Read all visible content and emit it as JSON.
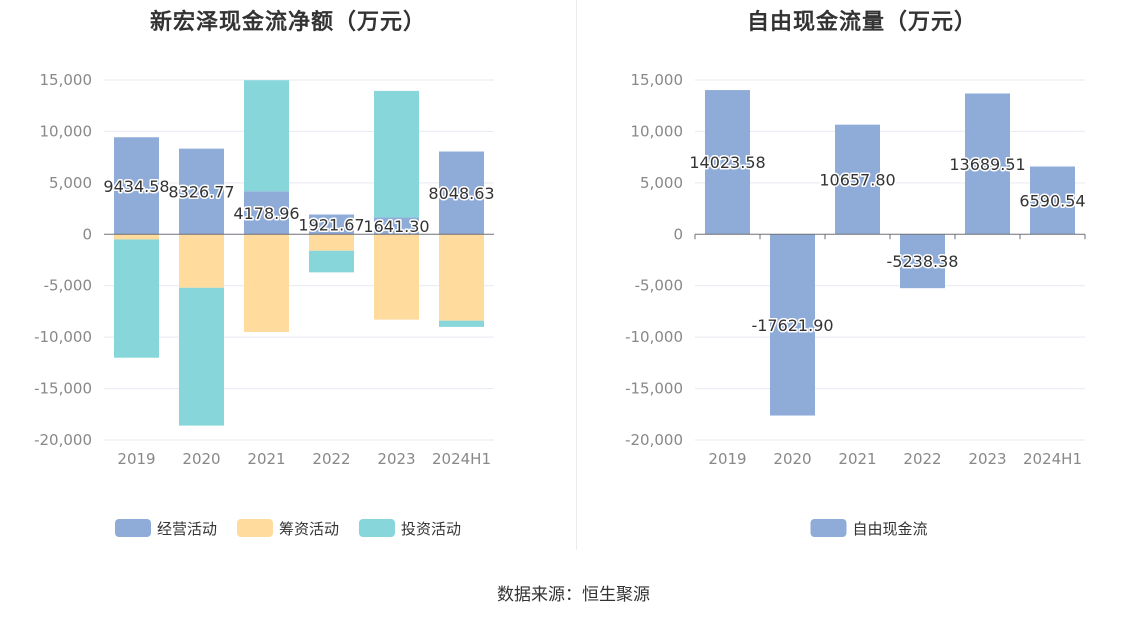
{
  "source": "数据来源：恒生聚源",
  "colors": {
    "operating": "#8facd9",
    "financing": "#ffdb9e",
    "investing": "#87d6da"
  },
  "chart_data": [
    {
      "type": "bar",
      "stacked": true,
      "title": "新宏泽现金流净额（万元）",
      "categories": [
        "2019",
        "2020",
        "2021",
        "2022",
        "2023",
        "2024H1"
      ],
      "ylim": [
        -20000,
        15000
      ],
      "yticks": [
        15000,
        10000,
        5000,
        0,
        -5000,
        -10000,
        -15000,
        -20000
      ],
      "ytick_labels": [
        "15,000",
        "10,000",
        "5,000",
        "0",
        "-5,000",
        "-10,000",
        "-15,000",
        "-20,000"
      ],
      "legend_position": "bottom",
      "series": [
        {
          "name": "经营活动",
          "values": [
            9434.58,
            8326.77,
            4178.96,
            1921.67,
            1641.3,
            8048.63
          ],
          "labels": [
            "9434.58",
            "8326.77",
            "4178.96",
            "1921.67",
            "1641.30",
            "8048.63"
          ]
        },
        {
          "name": "筹资活动",
          "values": [
            -500,
            -5200,
            -9500,
            -1600,
            -8300,
            -8400
          ]
        },
        {
          "name": "投资活动",
          "values": [
            -11500,
            -13400,
            10800,
            -2100,
            12300,
            -600
          ]
        }
      ]
    },
    {
      "type": "bar",
      "title": "自由现金流量（万元）",
      "categories": [
        "2019",
        "2020",
        "2021",
        "2022",
        "2023",
        "2024H1"
      ],
      "ylim": [
        -20000,
        15000
      ],
      "yticks": [
        15000,
        10000,
        5000,
        0,
        -5000,
        -10000,
        -15000,
        -20000
      ],
      "ytick_labels": [
        "15,000",
        "10,000",
        "5,000",
        "0",
        "-5,000",
        "-10,000",
        "-15,000",
        "-20,000"
      ],
      "legend_position": "bottom",
      "series": [
        {
          "name": "自由现金流",
          "values": [
            14023.58,
            -17621.9,
            10657.8,
            -5238.38,
            13689.51,
            6590.54
          ],
          "labels": [
            "14023.58",
            "-17621.90",
            "10657.80",
            "-5238.38",
            "13689.51",
            "6590.54"
          ]
        }
      ]
    }
  ]
}
